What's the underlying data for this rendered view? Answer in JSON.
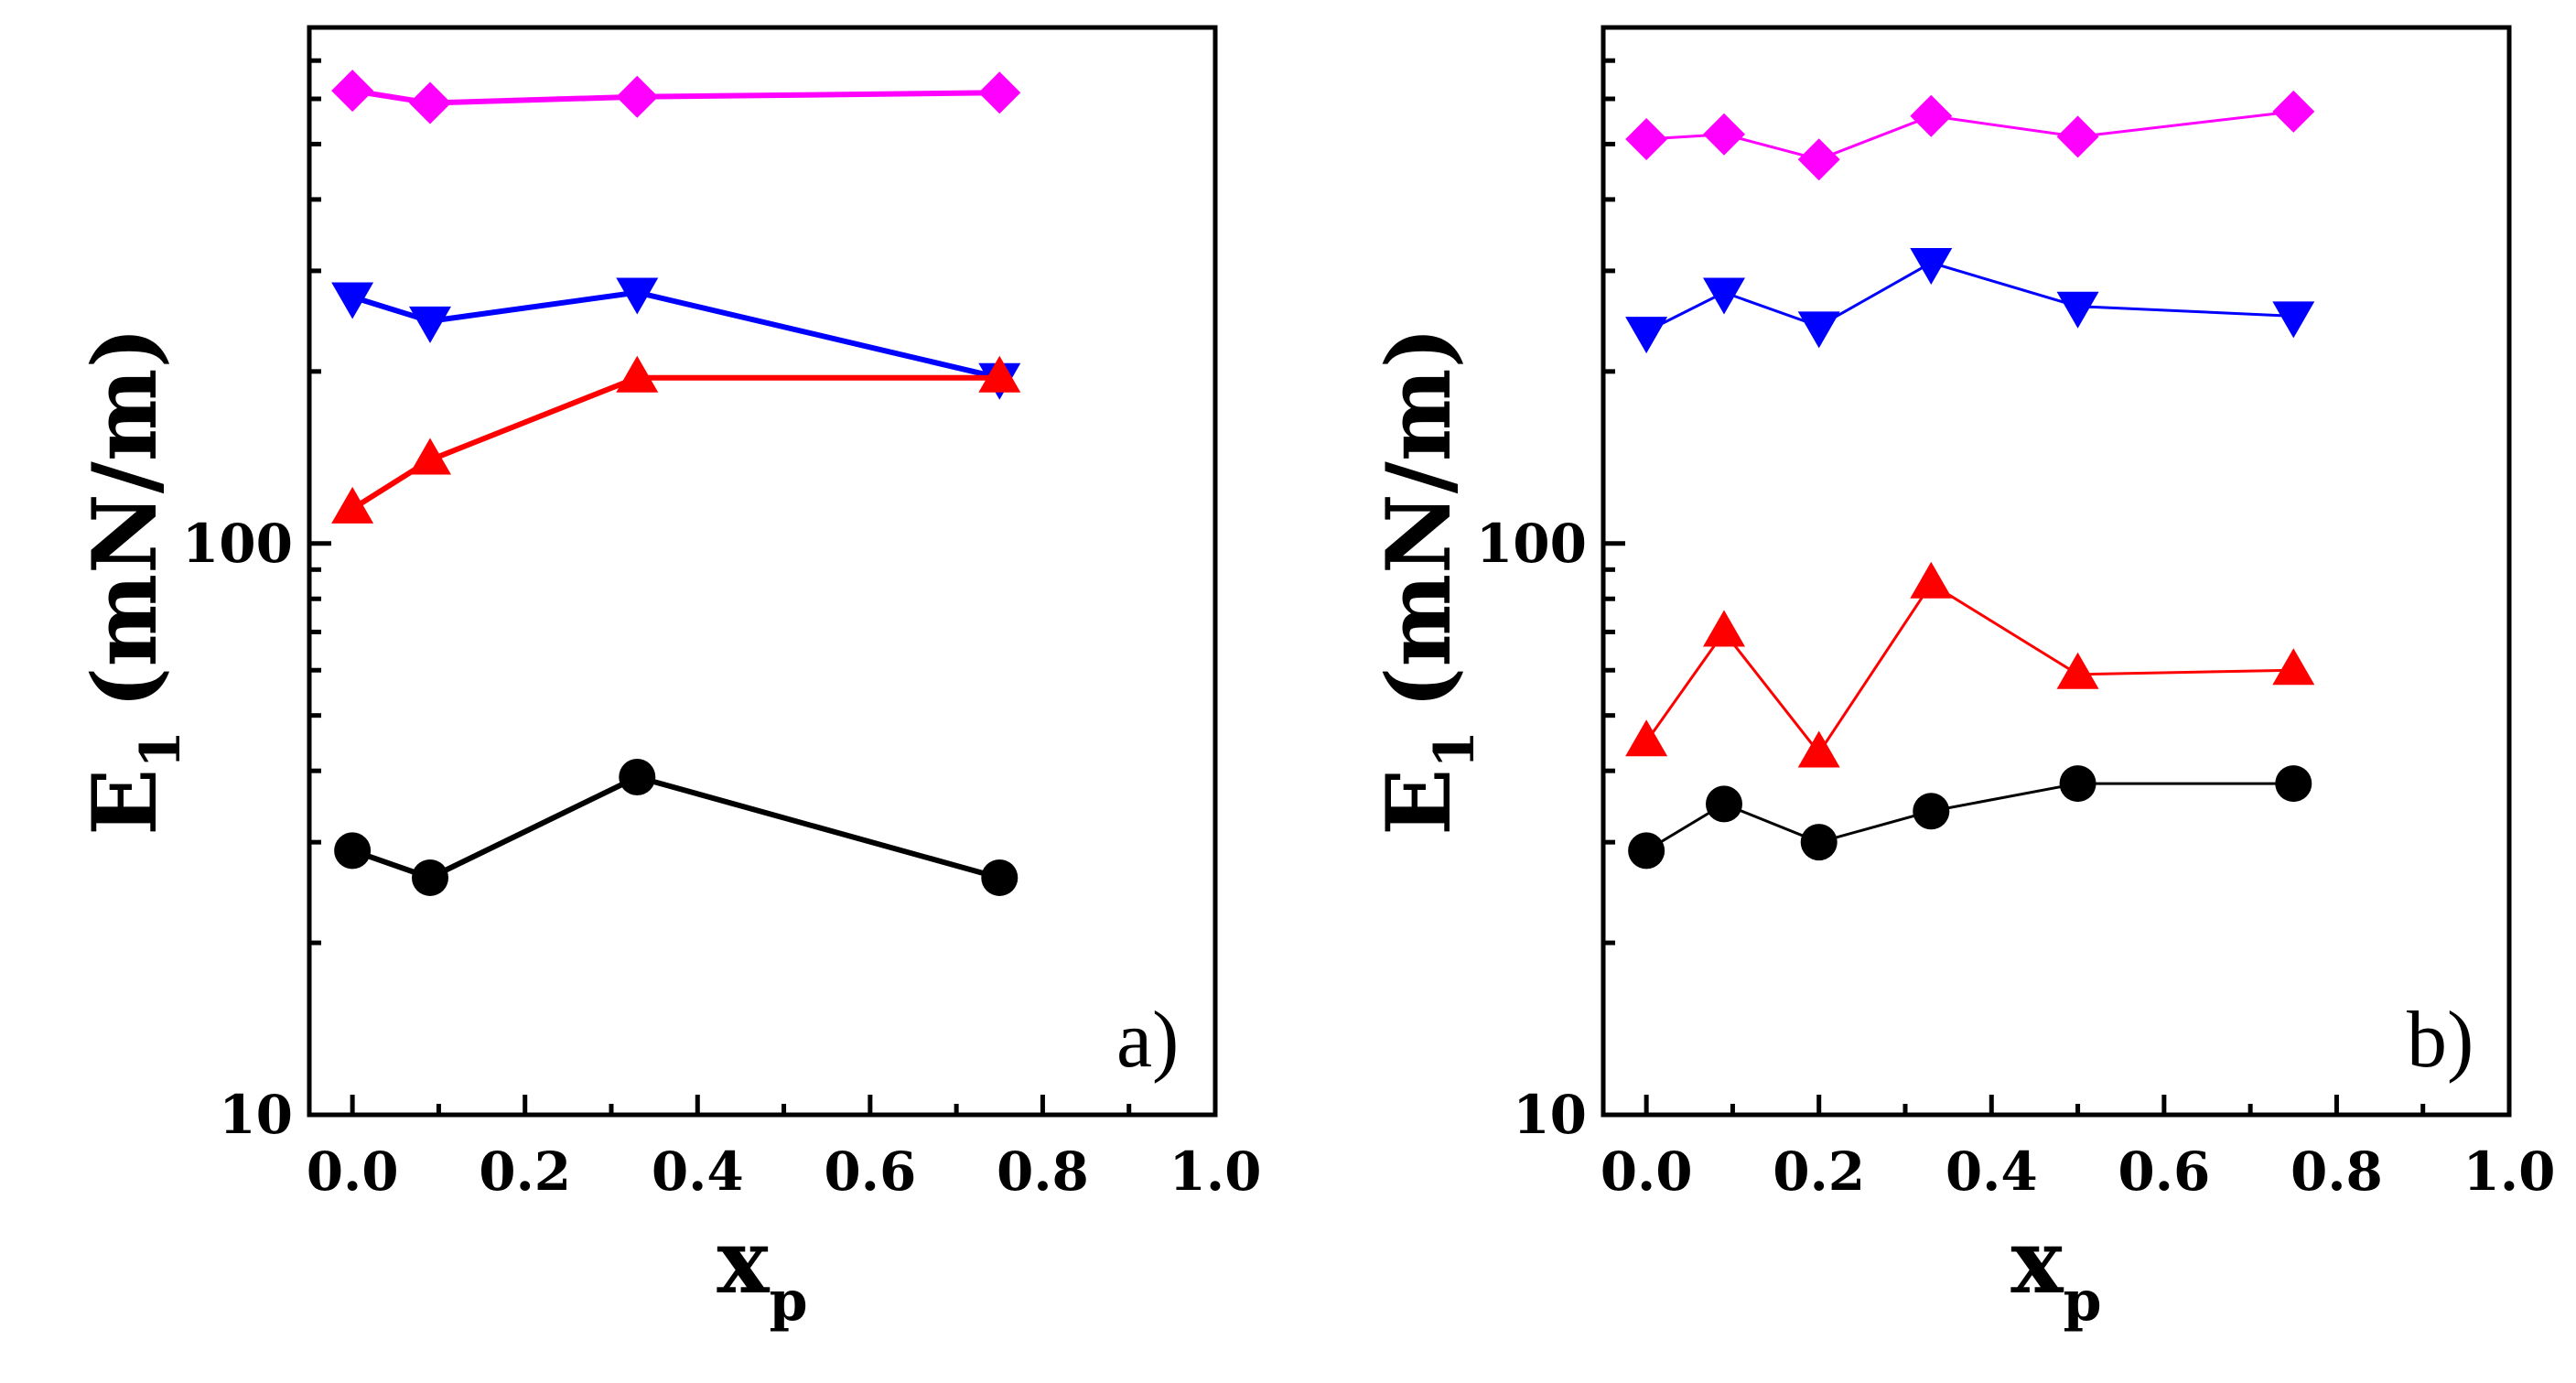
{
  "chart_data": [
    {
      "type": "line",
      "panel_label": "a)",
      "xlabel": "x",
      "xlabel_sub": "p",
      "ylabel": "E",
      "ylabel_sub": "1",
      "ylabel_unit": "(mN/m)",
      "xlim": [
        -0.05,
        1.0
      ],
      "ylim": [
        10,
        800
      ],
      "yscale": "log",
      "x_ticks": [
        "0.0",
        "0.2",
        "0.4",
        "0.6",
        "0.8",
        "1.0"
      ],
      "y_ticks": [
        "10",
        "100"
      ],
      "grid": false,
      "legend": "none",
      "series": [
        {
          "marker": "diamond",
          "color": "#ff00ff",
          "x": [
            0.0,
            0.09,
            0.33,
            0.75
          ],
          "y": [
            620,
            590,
            605,
            615
          ]
        },
        {
          "marker": "triangle-down",
          "color": "#0000ff",
          "x": [
            0.0,
            0.09,
            0.33,
            0.75
          ],
          "y": [
            270,
            245,
            275,
            195
          ]
        },
        {
          "marker": "triangle-up",
          "color": "#ff0000",
          "x": [
            0.0,
            0.09,
            0.33,
            0.75
          ],
          "y": [
            115,
            140,
            195,
            195
          ]
        },
        {
          "marker": "circle",
          "color": "#000000",
          "x": [
            0.0,
            0.09,
            0.33,
            0.75
          ],
          "y": [
            29,
            26,
            39,
            26
          ]
        }
      ]
    },
    {
      "type": "line",
      "panel_label": "b)",
      "xlabel": "x",
      "xlabel_sub": "p",
      "ylabel": "E",
      "ylabel_sub": "1",
      "ylabel_unit": "(mN/m)",
      "xlim": [
        -0.05,
        1.0
      ],
      "ylim": [
        10,
        800
      ],
      "yscale": "log",
      "x_ticks": [
        "0.0",
        "0.2",
        "0.4",
        "0.6",
        "0.8",
        "1.0"
      ],
      "y_ticks": [
        "10",
        "100"
      ],
      "grid": false,
      "legend": "none",
      "series": [
        {
          "marker": "diamond",
          "color": "#ff00ff",
          "x": [
            0.0,
            0.09,
            0.2,
            0.33,
            0.5,
            0.75
          ],
          "y": [
            510,
            520,
            470,
            560,
            515,
            570
          ]
        },
        {
          "marker": "triangle-down",
          "color": "#0000ff",
          "x": [
            0.0,
            0.09,
            0.2,
            0.33,
            0.5,
            0.75
          ],
          "y": [
            235,
            275,
            240,
            310,
            260,
            250
          ]
        },
        {
          "marker": "triangle-up",
          "color": "#ff0000",
          "x": [
            0.0,
            0.09,
            0.2,
            0.33,
            0.5,
            0.75
          ],
          "y": [
            45,
            70,
            43,
            85,
            59,
            60
          ]
        },
        {
          "marker": "circle",
          "color": "#000000",
          "x": [
            0.0,
            0.09,
            0.2,
            0.33,
            0.5,
            0.75
          ],
          "y": [
            29,
            35,
            30,
            34,
            38,
            38
          ]
        }
      ]
    }
  ]
}
